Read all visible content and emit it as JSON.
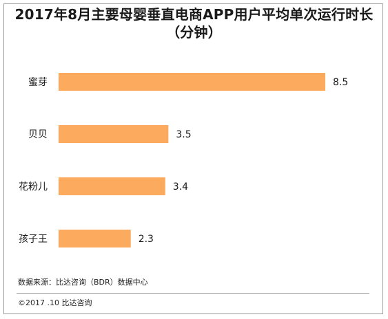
{
  "title": {
    "line1": "2017年8月主要母婴垂直电商APP用户平均单次运行时长",
    "line2": "（分钟）"
  },
  "footer": {
    "source": "数据来源：比达咨询（BDR）数据中心",
    "copyright": "©2017 .10   比达咨询"
  },
  "colors": {
    "bar": "#FBAA5E",
    "border": "#9a9a9a"
  },
  "chart_data": {
    "type": "bar",
    "orientation": "horizontal",
    "categories": [
      "蜜芽",
      "贝贝",
      "花粉儿",
      "孩子王"
    ],
    "values": [
      8.5,
      3.5,
      3.4,
      2.3
    ],
    "data_labels": [
      "8.5",
      "3.5",
      "3.4",
      "2.3"
    ],
    "title": "2017年8月主要母婴垂直电商APP用户平均单次运行时长（分钟）",
    "xlim": [
      0,
      8.5
    ],
    "grid": false,
    "legend": "none"
  }
}
